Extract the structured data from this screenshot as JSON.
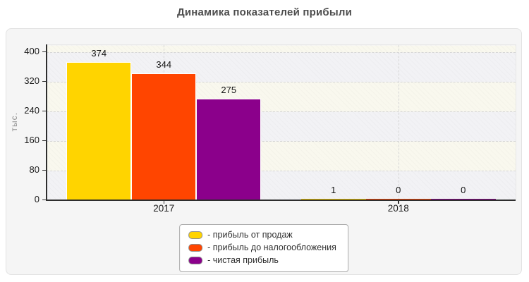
{
  "page": {
    "title": "Динамика показателей прибыли"
  },
  "chart_data": {
    "type": "bar",
    "title": "Динамика показателей прибыли",
    "xlabel": "",
    "ylabel": "тыс.",
    "categories": [
      "2017",
      "2018"
    ],
    "series": [
      {
        "name": "прибыль от продаж",
        "color": "#ffd400",
        "values": [
          374,
          1
        ]
      },
      {
        "name": "прибыль до налогообложения",
        "color": "#ff4500",
        "values": [
          344,
          0
        ]
      },
      {
        "name": "чистая прибыль",
        "color": "#8b008b",
        "values": [
          275,
          0
        ]
      }
    ],
    "yticks": [
      0,
      80,
      160,
      240,
      320,
      400
    ],
    "ylim": [
      0,
      420
    ],
    "grid": true,
    "grid_style": "dashed",
    "value_labels": true,
    "legend_position": "bottom"
  },
  "legend": {
    "items": [
      {
        "label": "- прибыль от продаж",
        "color": "#ffd400"
      },
      {
        "label": "- прибыль до налогообложения",
        "color": "#ff4500"
      },
      {
        "label": "- чистая прибыль",
        "color": "#8b008b"
      }
    ]
  },
  "colors": {
    "panel_background": "#f5f5f5",
    "panel_border": "#e2e2e2",
    "axis": "#2e2e2e",
    "gridline": "#d6d6d6",
    "title_text": "#4d4d4d"
  }
}
